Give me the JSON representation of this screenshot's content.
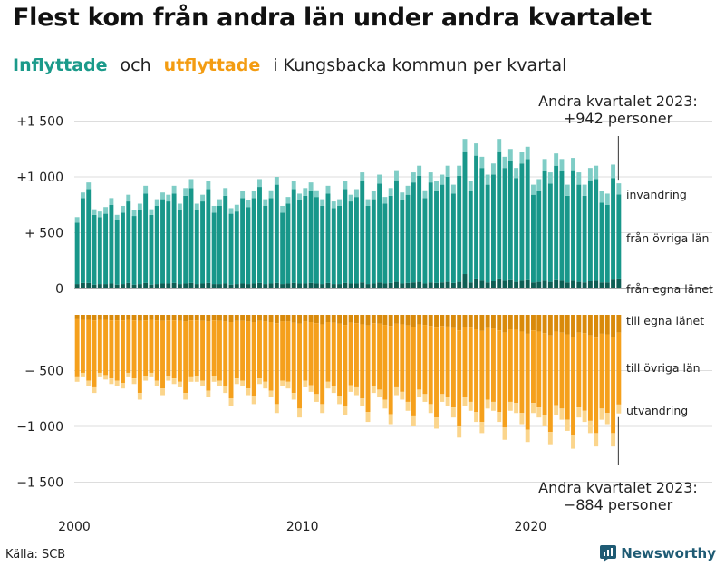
{
  "header": {
    "title": "Flest kom från andra län under andra kvartalet",
    "subtitle_in": "Inflyttade",
    "subtitle_and": "och",
    "subtitle_out": "utflyttade",
    "subtitle_rest": "i Kungsbacka  kommun  per  kvartal"
  },
  "footer": {
    "source": "Källa: SCB",
    "brand": "Newsworthy"
  },
  "colors": {
    "in_county": "#0e5e54",
    "in_other": "#18978a",
    "in_imm": "#7fcdc6",
    "out_county": "#d98a0b",
    "out_other": "#f5a01c",
    "out_emig": "#fbd58c",
    "grid": "#dddddd",
    "brand": "#1f5b74"
  },
  "chart_data": {
    "type": "bar",
    "stacked": true,
    "x_start": "2000 Q1",
    "x_end": "2023 Q2",
    "ylim": [
      -1500,
      1500
    ],
    "yticks": [
      {
        "value": 1500,
        "label": "+1 500"
      },
      {
        "value": 1000,
        "label": "+1 000"
      },
      {
        "value": 500,
        "label": "+  500"
      },
      {
        "value": 0,
        "label": "0"
      },
      {
        "value": -500,
        "label": "−  500"
      },
      {
        "value": -1000,
        "label": "−1 000"
      },
      {
        "value": -1500,
        "label": "−1 500"
      }
    ],
    "xticks": [
      {
        "year": 2000,
        "label": "2000"
      },
      {
        "year": 2010,
        "label": "2010"
      },
      {
        "year": 2020,
        "label": "2020"
      }
    ],
    "series_labels": {
      "invandring": "invandring",
      "fran_ovriga_lan": "från övriga län",
      "fran_egna_lanet": "från egna länet",
      "till_egna_lanet": "till egna länet",
      "till_ovriga_lan": "till övriga län",
      "utvandring": "utvandring"
    },
    "annotation_top": {
      "line1": "Andra kvartalet 2023:",
      "line2": "+942 personer"
    },
    "annotation_bottom": {
      "line1": "Andra kvartalet 2023:",
      "line2": "−884 personer"
    },
    "inflow_total": [
      640,
      860,
      950,
      710,
      690,
      730,
      810,
      660,
      740,
      840,
      700,
      760,
      920,
      710,
      800,
      860,
      840,
      920,
      760,
      900,
      980,
      760,
      840,
      960,
      740,
      800,
      900,
      720,
      750,
      870,
      790,
      870,
      980,
      800,
      880,
      1000,
      740,
      820,
      960,
      850,
      900,
      950,
      880,
      800,
      920,
      780,
      800,
      960,
      840,
      890,
      1040,
      800,
      870,
      1020,
      820,
      900,
      1060,
      860,
      920,
      1040,
      1100,
      880,
      1040,
      960,
      1020,
      1100,
      930,
      1100,
      1340,
      960,
      1300,
      1180,
      1020,
      1120,
      1340,
      1180,
      1250,
      1080,
      1220,
      1270,
      930,
      980,
      1160,
      1040,
      1210,
      1160,
      930,
      1170,
      1040,
      930,
      1080,
      1100,
      870,
      850,
      1110,
      942
    ],
    "inflow_county": [
      40,
      50,
      50,
      35,
      40,
      40,
      45,
      35,
      40,
      50,
      35,
      40,
      50,
      35,
      40,
      45,
      45,
      50,
      40,
      45,
      50,
      40,
      45,
      50,
      40,
      40,
      45,
      35,
      40,
      45,
      40,
      45,
      50,
      40,
      45,
      50,
      40,
      45,
      50,
      45,
      45,
      50,
      45,
      40,
      50,
      40,
      40,
      50,
      45,
      45,
      55,
      40,
      45,
      55,
      45,
      50,
      60,
      45,
      50,
      55,
      60,
      45,
      55,
      50,
      55,
      60,
      50,
      60,
      130,
      55,
      90,
      70,
      55,
      65,
      90,
      70,
      75,
      60,
      70,
      75,
      55,
      60,
      70,
      60,
      75,
      70,
      55,
      70,
      60,
      55,
      65,
      70,
      55,
      55,
      80,
      90
    ],
    "immigration": [
      50,
      50,
      60,
      50,
      50,
      60,
      60,
      50,
      60,
      60,
      50,
      60,
      70,
      50,
      60,
      60,
      60,
      70,
      60,
      70,
      80,
      60,
      60,
      70,
      60,
      60,
      70,
      50,
      60,
      60,
      60,
      60,
      70,
      60,
      70,
      70,
      60,
      60,
      70,
      60,
      70,
      70,
      60,
      60,
      70,
      60,
      60,
      70,
      60,
      70,
      80,
      60,
      70,
      80,
      60,
      70,
      90,
      70,
      80,
      90,
      90,
      70,
      90,
      80,
      90,
      100,
      80,
      90,
      110,
      90,
      110,
      100,
      90,
      100,
      110,
      100,
      110,
      90,
      100,
      110,
      90,
      100,
      110,
      100,
      110,
      110,
      100,
      110,
      110,
      100,
      110,
      120,
      100,
      100,
      120,
      100
    ],
    "outflow_total": [
      -600,
      -560,
      -640,
      -700,
      -560,
      -580,
      -620,
      -640,
      -660,
      -560,
      -620,
      -760,
      -590,
      -560,
      -640,
      -720,
      -590,
      -620,
      -650,
      -760,
      -600,
      -600,
      -640,
      -740,
      -600,
      -640,
      -700,
      -820,
      -620,
      -640,
      -720,
      -800,
      -620,
      -660,
      -740,
      -880,
      -640,
      -660,
      -760,
      -920,
      -650,
      -690,
      -780,
      -880,
      -660,
      -700,
      -800,
      -900,
      -690,
      -720,
      -820,
      -960,
      -700,
      -740,
      -840,
      -980,
      -720,
      -760,
      -860,
      -1000,
      -740,
      -780,
      -880,
      -1020,
      -780,
      -820,
      -920,
      -1100,
      -820,
      -860,
      -960,
      -1060,
      -840,
      -860,
      -960,
      -1120,
      -860,
      -880,
      -980,
      -1140,
      -880,
      -920,
      -1000,
      -1160,
      -900,
      -940,
      -1040,
      -1200,
      -920,
      -960,
      -1060,
      -1180,
      -940,
      -980,
      -1180,
      -884
    ],
    "outflow_county": [
      -40,
      -45,
      -45,
      -50,
      -45,
      -45,
      -50,
      -50,
      -50,
      -45,
      -50,
      -55,
      -50,
      -45,
      -50,
      -55,
      -50,
      -50,
      -55,
      -60,
      -50,
      -50,
      -55,
      -60,
      -50,
      -55,
      -60,
      -65,
      -55,
      -55,
      -60,
      -65,
      -55,
      -60,
      -65,
      -75,
      -60,
      -60,
      -70,
      -80,
      -60,
      -65,
      -75,
      -85,
      -65,
      -70,
      -80,
      -90,
      -70,
      -75,
      -85,
      -95,
      -75,
      -80,
      -90,
      -100,
      -80,
      -85,
      -95,
      -110,
      -85,
      -90,
      -100,
      -115,
      -100,
      -105,
      -120,
      -140,
      -110,
      -115,
      -130,
      -145,
      -120,
      -125,
      -140,
      -160,
      -130,
      -135,
      -150,
      -170,
      -140,
      -150,
      -165,
      -185,
      -150,
      -160,
      -175,
      -200,
      -160,
      -165,
      -185,
      -205,
      -170,
      -175,
      -200,
      -160
    ],
    "emigration": [
      -40,
      -40,
      -50,
      -50,
      -40,
      -40,
      -50,
      -50,
      -50,
      -40,
      -50,
      -60,
      -40,
      -40,
      -50,
      -60,
      -40,
      -50,
      -50,
      -60,
      -40,
      -50,
      -50,
      -60,
      -50,
      -50,
      -60,
      -70,
      -50,
      -50,
      -60,
      -70,
      -50,
      -60,
      -60,
      -80,
      -50,
      -60,
      -60,
      -80,
      -60,
      -60,
      -70,
      -80,
      -60,
      -60,
      -70,
      -80,
      -60,
      -70,
      -70,
      -90,
      -60,
      -70,
      -80,
      -90,
      -70,
      -70,
      -80,
      -90,
      -70,
      -70,
      -80,
      -100,
      -70,
      -80,
      -90,
      -100,
      -80,
      -80,
      -90,
      -100,
      -80,
      -80,
      -90,
      -110,
      -80,
      -90,
      -100,
      -110,
      -90,
      -90,
      -100,
      -110,
      -90,
      -100,
      -100,
      -120,
      -90,
      -100,
      -110,
      -120,
      -100,
      -100,
      -120,
      -80
    ]
  }
}
